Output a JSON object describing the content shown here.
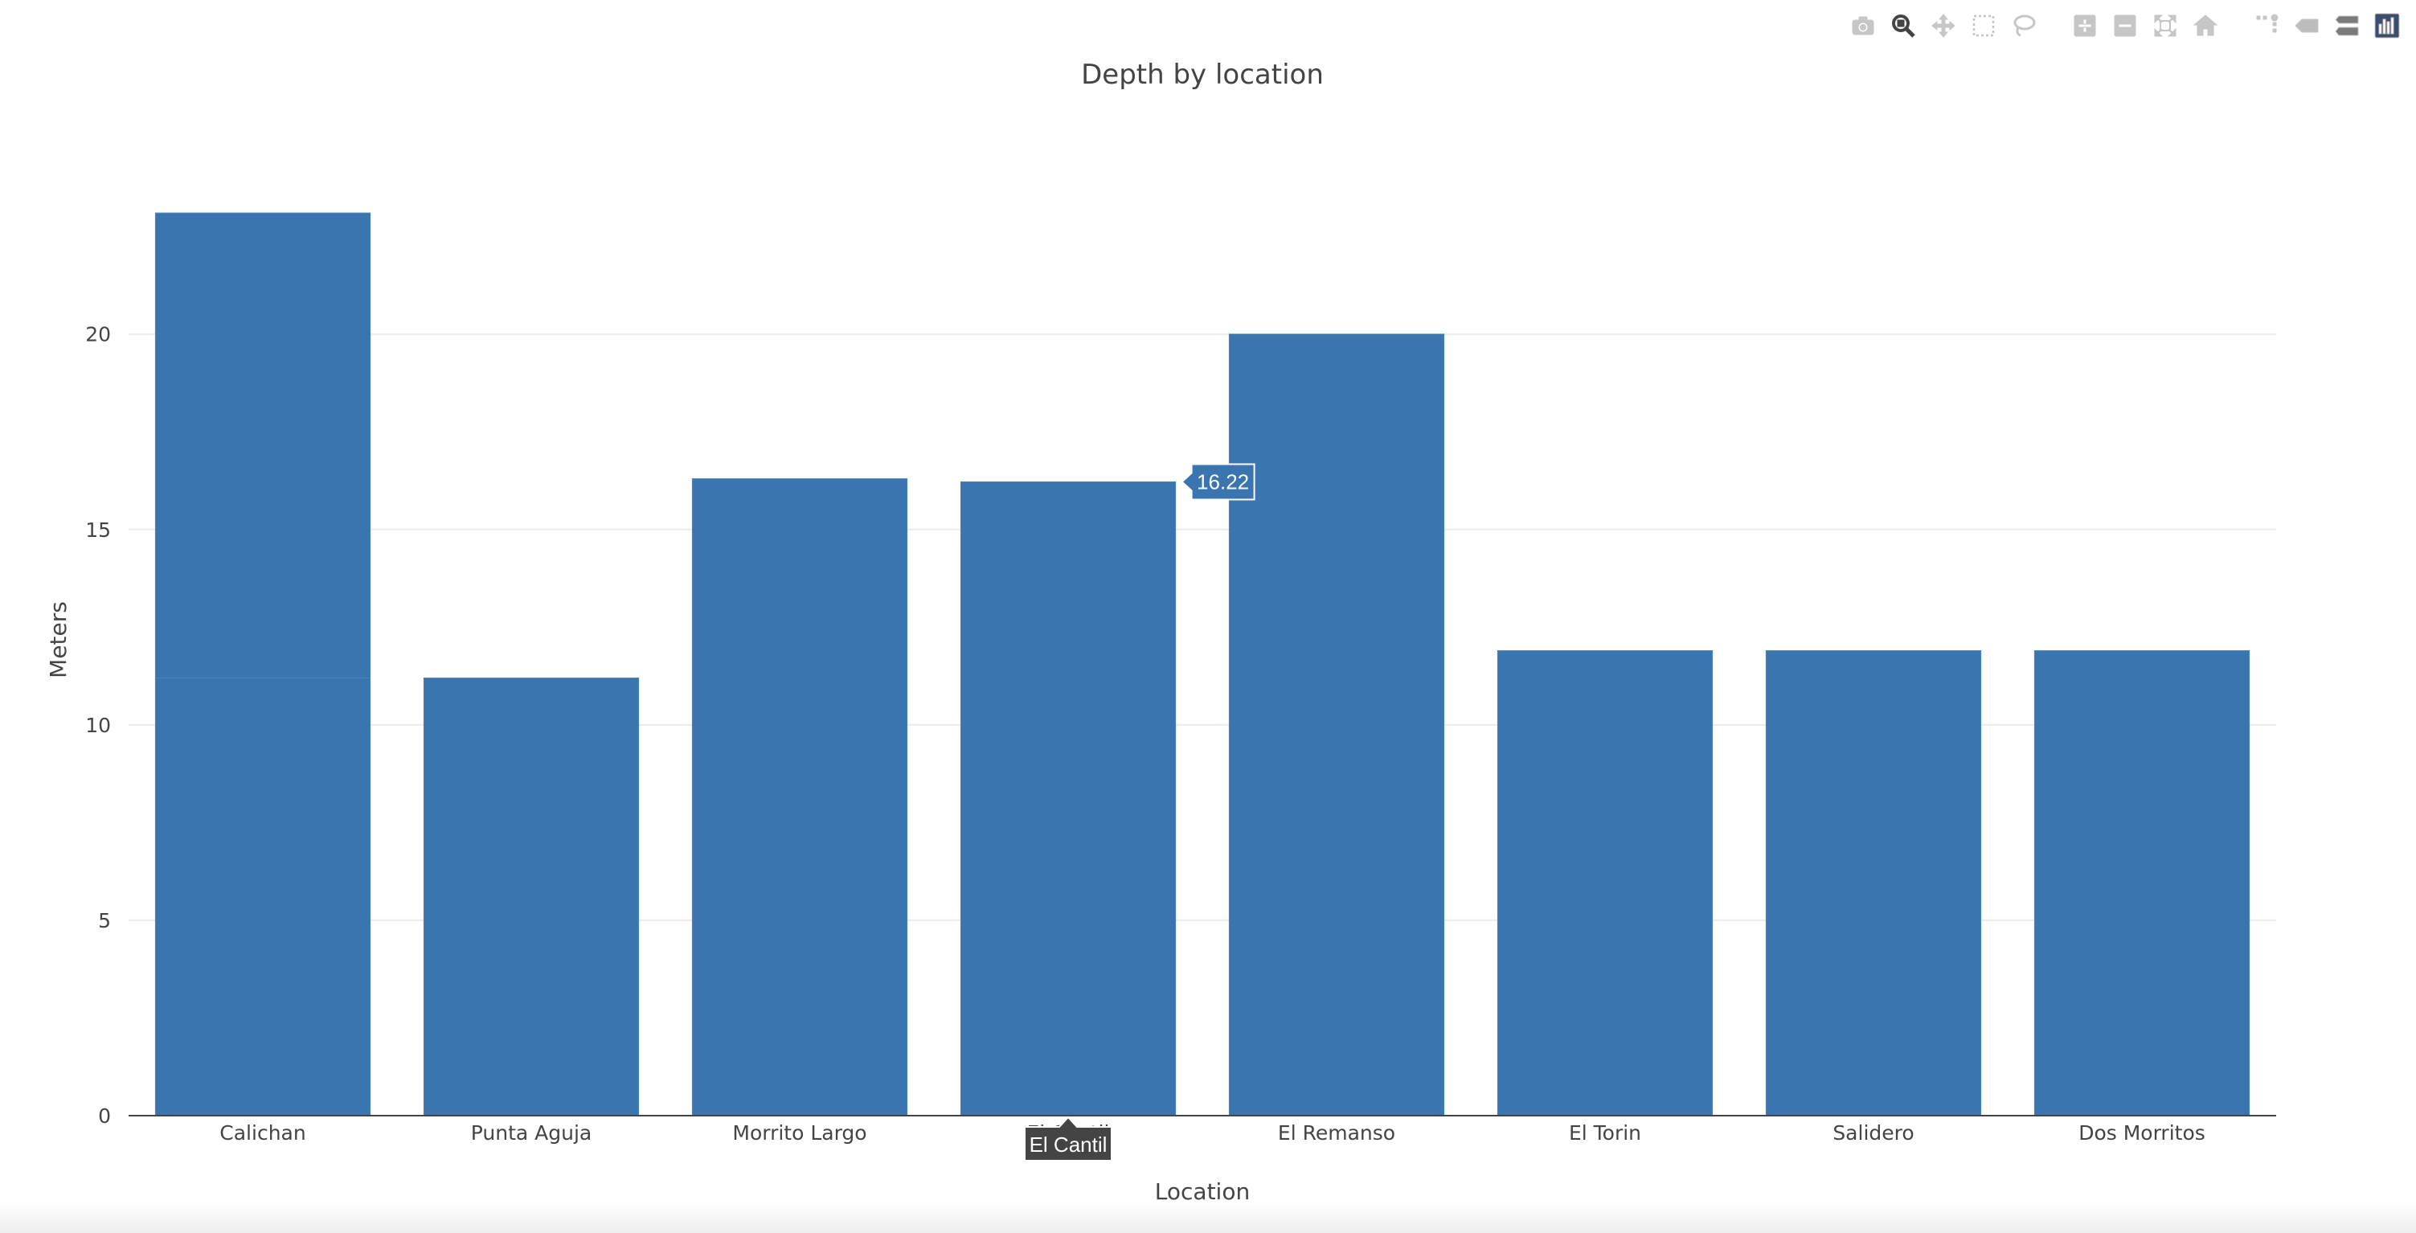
{
  "chart_data": {
    "type": "bar",
    "title": "Depth by location",
    "xlabel": "Location",
    "ylabel": "Meters",
    "categories": [
      "Calichan",
      "Punta Aguja",
      "Morrito Largo",
      "El Cantil",
      "El Remanso",
      "El Torin",
      "Salidero",
      "Dos Morritos"
    ],
    "stacked_segments": [
      [
        11.2,
        11.9
      ],
      [
        11.2
      ],
      [
        16.3
      ],
      [
        16.22
      ],
      [
        20
      ],
      [
        11.9
      ],
      [
        11.9
      ],
      [
        11.9
      ]
    ],
    "ylim": [
      0,
      23.1
    ],
    "yticks": [
      0,
      5,
      10,
      15,
      20
    ],
    "grid": true,
    "bar_color": "#3b75af",
    "hover": {
      "category_index": 3,
      "value_label": "16.22",
      "category_label": "El Cantil"
    }
  },
  "modebar": [
    {
      "name": "camera-icon",
      "active": false
    },
    {
      "name": "zoom-icon",
      "active": true
    },
    {
      "name": "pan-icon",
      "active": false
    },
    {
      "name": "box-select-icon",
      "active": false
    },
    {
      "name": "lasso-select-icon",
      "active": false
    },
    {
      "name": "zoom-in-icon",
      "active": false
    },
    {
      "name": "zoom-out-icon",
      "active": false
    },
    {
      "name": "autoscale-icon",
      "active": false
    },
    {
      "name": "reset-axes-icon",
      "active": false
    },
    {
      "name": "spike-lines-icon",
      "active": false
    },
    {
      "name": "hover-closest-icon",
      "active": false
    },
    {
      "name": "hover-compare-icon",
      "active": false
    },
    {
      "name": "plotly-logo-icon",
      "active": false
    }
  ]
}
